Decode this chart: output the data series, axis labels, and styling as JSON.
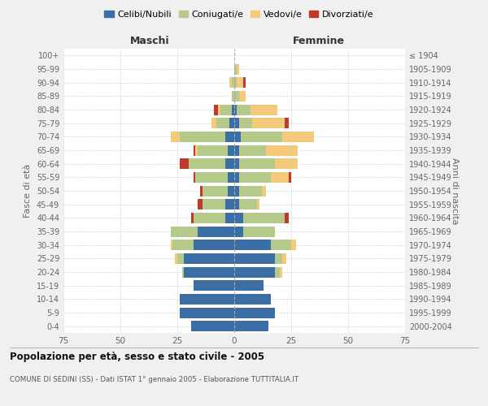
{
  "age_groups": [
    "0-4",
    "5-9",
    "10-14",
    "15-19",
    "20-24",
    "25-29",
    "30-34",
    "35-39",
    "40-44",
    "45-49",
    "50-54",
    "55-59",
    "60-64",
    "65-69",
    "70-74",
    "75-79",
    "80-84",
    "85-89",
    "90-94",
    "95-99",
    "100+"
  ],
  "birth_years": [
    "2000-2004",
    "1995-1999",
    "1990-1994",
    "1985-1989",
    "1980-1984",
    "1975-1979",
    "1970-1974",
    "1965-1969",
    "1960-1964",
    "1955-1959",
    "1950-1954",
    "1945-1949",
    "1940-1944",
    "1935-1939",
    "1930-1934",
    "1925-1929",
    "1920-1924",
    "1915-1919",
    "1910-1914",
    "1905-1909",
    "≤ 1904"
  ],
  "maschi": {
    "celibi": [
      19,
      24,
      24,
      18,
      22,
      22,
      18,
      16,
      4,
      4,
      3,
      3,
      4,
      3,
      4,
      2,
      1,
      0,
      0,
      0,
      0
    ],
    "coniugati": [
      0,
      0,
      0,
      0,
      1,
      3,
      9,
      12,
      14,
      10,
      11,
      14,
      16,
      13,
      20,
      6,
      5,
      1,
      1,
      0,
      0
    ],
    "vedovi": [
      0,
      0,
      0,
      0,
      0,
      1,
      1,
      0,
      0,
      0,
      0,
      0,
      0,
      1,
      4,
      2,
      1,
      0,
      1,
      0,
      0
    ],
    "divorziati": [
      0,
      0,
      0,
      0,
      0,
      0,
      0,
      0,
      1,
      2,
      1,
      1,
      4,
      1,
      0,
      0,
      2,
      0,
      0,
      0,
      0
    ]
  },
  "femmine": {
    "nubili": [
      15,
      18,
      16,
      13,
      18,
      18,
      16,
      4,
      4,
      2,
      2,
      2,
      2,
      2,
      3,
      2,
      1,
      0,
      0,
      0,
      0
    ],
    "coniugate": [
      0,
      0,
      0,
      0,
      2,
      3,
      9,
      14,
      18,
      8,
      10,
      14,
      16,
      12,
      18,
      6,
      6,
      2,
      1,
      1,
      0
    ],
    "vedove": [
      0,
      0,
      0,
      0,
      1,
      2,
      2,
      0,
      0,
      1,
      2,
      8,
      10,
      14,
      14,
      14,
      12,
      3,
      3,
      1,
      0
    ],
    "divorziate": [
      0,
      0,
      0,
      0,
      0,
      0,
      0,
      0,
      2,
      0,
      0,
      1,
      0,
      0,
      0,
      2,
      0,
      0,
      1,
      0,
      0
    ]
  },
  "colors": {
    "celibi_nubili": "#3a6ea5",
    "coniugati": "#b5c98a",
    "vedovi": "#f5c97a",
    "divorziati": "#c0392b"
  },
  "xlim": 75,
  "title": "Popolazione per età, sesso e stato civile - 2005",
  "subtitle": "COMUNE DI SEDINI (SS) - Dati ISTAT 1° gennaio 2005 - Elaborazione TUTTITALIA.IT",
  "ylabel_left": "Fasce di età",
  "ylabel_right": "Anni di nascita",
  "xlabel_left": "Maschi",
  "xlabel_right": "Femmine",
  "bg_color": "#f0f0f0",
  "plot_bg": "#ffffff"
}
